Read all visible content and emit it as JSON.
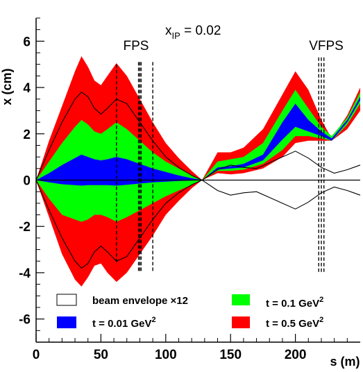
{
  "chart_data": {
    "type": "area",
    "title": "",
    "xlabel": "s (m)",
    "ylabel": "x (cm)",
    "xlim": [
      0,
      250
    ],
    "ylim": [
      -7,
      7
    ],
    "x_ticks": [
      0,
      50,
      100,
      150,
      200
    ],
    "x_tick_labels": [
      "0",
      "50",
      "100",
      "150",
      "200"
    ],
    "y_ticks": [
      -6,
      -4,
      -2,
      0,
      2,
      4,
      6
    ],
    "y_tick_labels": [
      "-6",
      "-4",
      "-2",
      "0",
      "2",
      "4",
      "6"
    ],
    "grid": false,
    "annotations": {
      "xip_main": "x",
      "xip_sub": "IP",
      "xip_value": " = 0.02",
      "fps": "FPS",
      "vfps": "VFPS"
    },
    "detector_lines": [
      {
        "group": "FPS",
        "x": 62
      },
      {
        "group": "FPS",
        "x": 79
      },
      {
        "group": "FPS",
        "x": 80
      },
      {
        "group": "FPS",
        "x": 81
      },
      {
        "group": "FPS",
        "x": 90
      },
      {
        "group": "VFPS",
        "x": 218
      },
      {
        "group": "VFPS",
        "x": 220
      },
      {
        "group": "VFPS",
        "x": 222
      }
    ],
    "legend": {
      "placement": "bottom",
      "entries": [
        {
          "key": "envelope",
          "label": "beam envelope ×12",
          "color": "#ffffff"
        },
        {
          "key": "t01",
          "label": "t = 0.1 GeV",
          "sup": "2",
          "color": "#00ff00"
        },
        {
          "key": "t001",
          "label": "t = 0.01 GeV",
          "sup": "2",
          "color": "#0000ff"
        },
        {
          "key": "t05",
          "label": "t = 0.5  GeV",
          "sup": "2",
          "color": "#ff0000"
        }
      ]
    },
    "bands": [
      {
        "key": "t05",
        "color": "#ff0000",
        "x": [
          0,
          10,
          20,
          30,
          35,
          40,
          45,
          50,
          55,
          62,
          70,
          80,
          90,
          100,
          110,
          120,
          128,
          140,
          150,
          160,
          175,
          190,
          200,
          210,
          220,
          228,
          240,
          250
        ],
        "upper": [
          0,
          1.7,
          3.2,
          4.7,
          5.35,
          4.9,
          4.3,
          4.1,
          4.5,
          5.05,
          4.5,
          3.5,
          2.5,
          1.6,
          0.95,
          0.4,
          0,
          1.2,
          1.2,
          1.4,
          2.2,
          3.7,
          4.7,
          3.9,
          2.6,
          1.8,
          2.8,
          4.0
        ],
        "lower": [
          0,
          -1.6,
          -3.2,
          -4.3,
          -4.6,
          -4.2,
          -3.7,
          -3.6,
          -4.0,
          -4.4,
          -4.0,
          -3.2,
          -2.4,
          -1.5,
          -0.9,
          -0.35,
          0,
          0.3,
          0.25,
          0.3,
          0.5,
          1.0,
          1.6,
          1.7,
          1.7,
          1.7,
          2.2,
          3.0
        ]
      },
      {
        "key": "t01",
        "color": "#00ff00",
        "x": [
          0,
          10,
          20,
          30,
          35,
          40,
          45,
          50,
          55,
          62,
          70,
          80,
          90,
          100,
          110,
          120,
          128,
          140,
          150,
          160,
          175,
          190,
          200,
          210,
          220,
          228,
          240,
          250
        ],
        "upper": [
          0,
          0.8,
          1.6,
          2.3,
          2.6,
          2.4,
          2.1,
          2.0,
          2.2,
          2.5,
          2.2,
          1.7,
          1.2,
          0.8,
          0.5,
          0.2,
          0,
          0.8,
          0.9,
          1.0,
          1.6,
          3.0,
          3.9,
          3.1,
          2.3,
          1.9,
          2.7,
          3.8
        ],
        "lower": [
          0,
          -0.8,
          -1.5,
          -1.7,
          -1.8,
          -1.7,
          -1.5,
          -1.5,
          -1.6,
          -1.8,
          -1.6,
          -1.3,
          -1.0,
          -0.7,
          -0.45,
          -0.2,
          0,
          0.4,
          0.4,
          0.45,
          0.7,
          1.3,
          1.9,
          1.9,
          1.8,
          1.7,
          2.4,
          3.3
        ]
      },
      {
        "key": "t001",
        "color": "#0000ff",
        "x": [
          0,
          10,
          20,
          30,
          35,
          40,
          45,
          50,
          55,
          62,
          70,
          80,
          90,
          100,
          110,
          120,
          128,
          140,
          150,
          160,
          175,
          190,
          200,
          210,
          220,
          228,
          240,
          250
        ],
        "upper": [
          0,
          0.3,
          0.65,
          0.95,
          1.1,
          1.0,
          0.9,
          0.85,
          0.9,
          1.0,
          0.9,
          0.7,
          0.5,
          0.35,
          0.2,
          0.08,
          0,
          0.55,
          0.6,
          0.7,
          1.1,
          2.5,
          3.3,
          2.6,
          2.1,
          1.8,
          2.6,
          3.6
        ],
        "lower": [
          0,
          -0.1,
          -0.18,
          -0.22,
          -0.24,
          -0.22,
          -0.22,
          -0.22,
          -0.22,
          -0.24,
          -0.2,
          -0.15,
          -0.1,
          -0.07,
          -0.04,
          -0.02,
          0,
          0.45,
          0.5,
          0.55,
          0.85,
          1.75,
          2.3,
          2.1,
          1.9,
          1.7,
          2.5,
          3.45
        ]
      }
    ],
    "envelope": {
      "key": "envelope",
      "color": "#000000",
      "x": [
        0,
        10,
        20,
        30,
        35,
        40,
        45,
        50,
        55,
        62,
        70,
        80,
        90,
        100,
        110,
        120,
        128,
        140,
        150,
        160,
        170,
        180,
        190,
        200,
        210,
        220,
        230,
        240,
        250
      ],
      "upper": [
        0,
        1.3,
        2.5,
        3.5,
        3.8,
        3.6,
        3.1,
        2.85,
        3.1,
        3.5,
        3.3,
        2.5,
        1.7,
        1.0,
        0.55,
        0.2,
        0,
        0.45,
        0.65,
        0.55,
        0.5,
        0.75,
        1.0,
        1.25,
        0.95,
        0.55,
        0.3,
        0.45,
        0.65
      ],
      "lower": [
        0,
        -1.3,
        -2.5,
        -3.5,
        -3.8,
        -3.6,
        -3.1,
        -2.85,
        -3.1,
        -3.5,
        -3.3,
        -2.5,
        -1.7,
        -1.0,
        -0.55,
        -0.2,
        0,
        -0.45,
        -0.65,
        -0.55,
        -0.5,
        -0.75,
        -1.0,
        -1.25,
        -0.95,
        -0.55,
        -0.3,
        -0.45,
        -0.65
      ]
    },
    "zero_line": true
  }
}
